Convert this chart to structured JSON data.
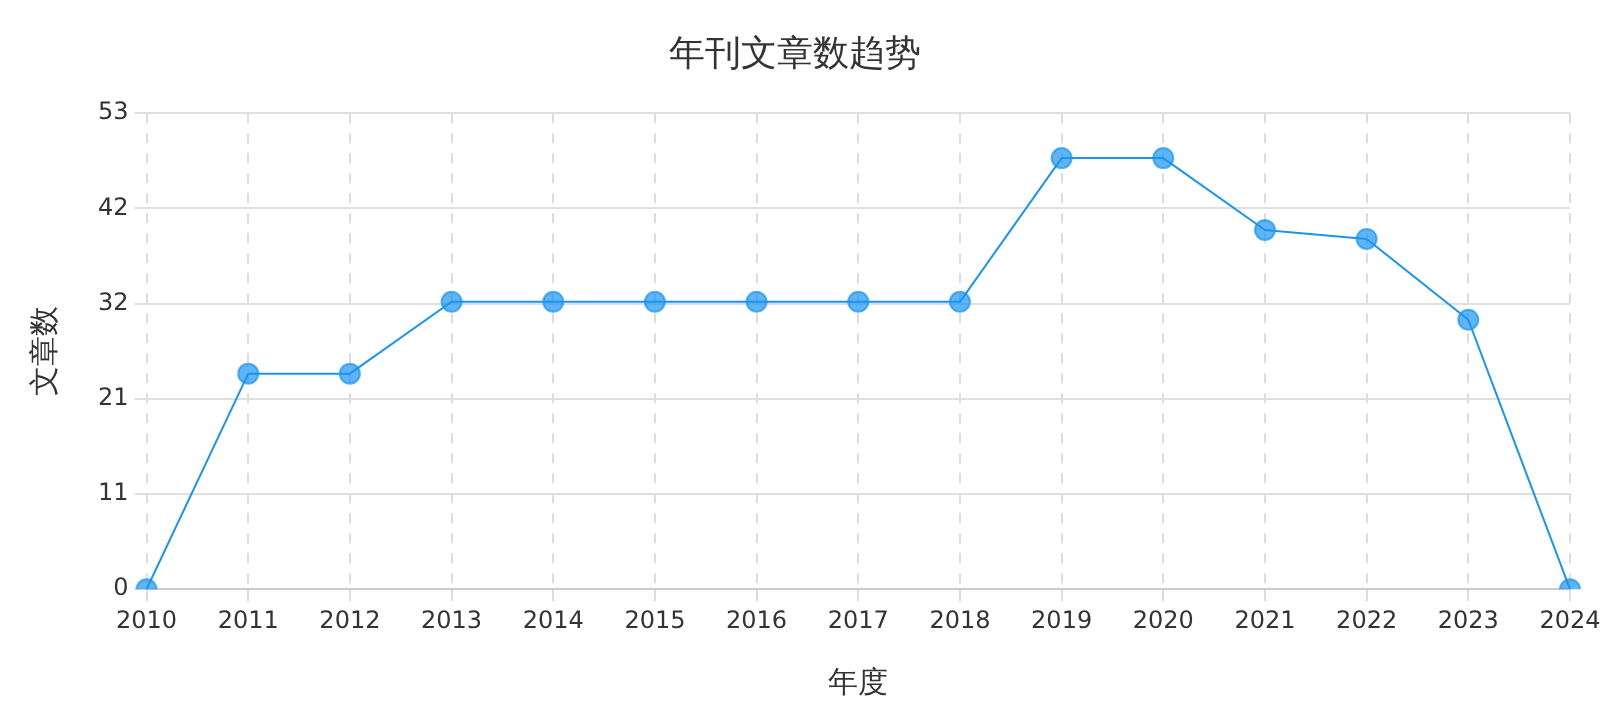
{
  "chart_data": {
    "type": "line",
    "title": "年刊文章数趋势",
    "xlabel": "年度",
    "ylabel": "文章数",
    "categories": [
      "2010",
      "2011",
      "2012",
      "2013",
      "2014",
      "2015",
      "2016",
      "2017",
      "2018",
      "2019",
      "2020",
      "2021",
      "2022",
      "2023",
      "2024"
    ],
    "series": [
      {
        "color": "#1a94f0",
        "values": [
          0,
          24,
          24,
          32,
          32,
          32,
          32,
          32,
          32,
          48,
          48,
          40,
          39,
          30,
          0
        ]
      }
    ],
    "ylim": [
      0,
      53
    ],
    "yticks": [
      0,
      {
        "value": 10.6,
        "label": "11"
      },
      {
        "value": 21.2,
        "label": "21"
      },
      {
        "value": 31.8,
        "label": "32"
      },
      {
        "value": 42.4,
        "label": "42"
      },
      53
    ],
    "grid": true,
    "marker": "circle",
    "line_style": "solid",
    "legend": false
  }
}
